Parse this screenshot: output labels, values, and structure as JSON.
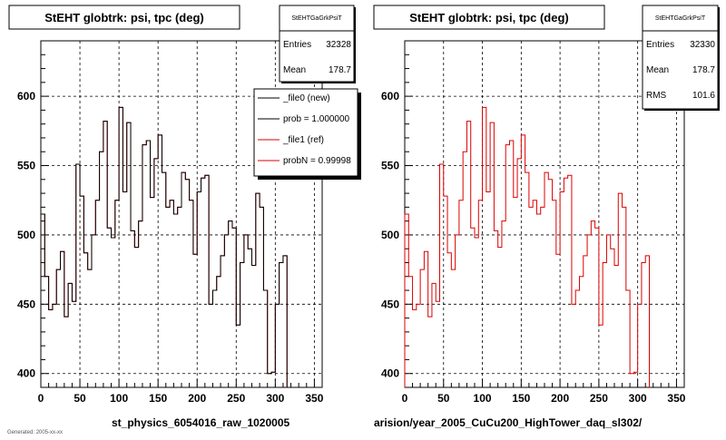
{
  "chart_data": [
    {
      "type": "line",
      "title": "StEHT globtrk: psi, tpc (deg)",
      "footer_label": "st_physics_6054016_raw_1020005",
      "stats": {
        "name": "StEHTGaGrkPsiT",
        "entries_label": "Entries",
        "entries": "32328",
        "mean_label": "Mean",
        "mean": "178.7"
      },
      "legend": [
        {
          "label": "_file0 (new)",
          "color": "#000000"
        },
        {
          "label": "prob = 1.000000",
          "color": "#000000"
        },
        {
          "label": "_file1 (ref)",
          "color": "#dd0000"
        },
        {
          "label": "probN = 0.99998",
          "color": "#dd0000"
        }
      ],
      "xlim": [
        0,
        360
      ],
      "ylim": [
        390,
        640
      ],
      "xticks": [
        "0",
        "50",
        "100",
        "150",
        "200",
        "250",
        "300",
        "350"
      ],
      "yticks": [
        "400",
        "450",
        "500",
        "550",
        "600"
      ],
      "grid": true,
      "bin_width": 5,
      "series": [
        {
          "color": "#dd0000",
          "values": [
            515,
            470,
            446,
            450,
            475,
            488,
            441,
            465,
            452,
            551,
            528,
            487,
            475,
            500,
            525,
            560,
            582,
            505,
            498,
            525,
            592,
            531,
            581,
            503,
            491,
            510,
            565,
            568,
            527,
            555,
            572,
            545,
            520,
            525,
            515,
            520,
            545,
            540,
            525,
            486,
            531,
            541,
            543,
            450,
            460,
            470,
            485,
            500,
            510,
            505,
            435,
            480,
            500,
            490,
            478,
            530,
            520,
            460,
            400,
            401,
            450,
            480,
            485
          ]
        },
        {
          "color": "#000000",
          "values": [
            515,
            470,
            446,
            450,
            475,
            488,
            441,
            465,
            452,
            551,
            528,
            487,
            475,
            500,
            525,
            560,
            582,
            505,
            498,
            525,
            592,
            531,
            581,
            503,
            491,
            510,
            565,
            568,
            527,
            555,
            572,
            545,
            520,
            525,
            515,
            520,
            545,
            540,
            525,
            486,
            531,
            541,
            543,
            450,
            460,
            470,
            485,
            500,
            510,
            505,
            435,
            480,
            500,
            490,
            478,
            530,
            520,
            460,
            400,
            401,
            450,
            480,
            485
          ]
        }
      ]
    },
    {
      "type": "line",
      "title": "StEHT globtrk: psi, tpc (deg)",
      "footer_label": "arision/year_2005_CuCu200_HighTower_daq_sl302/",
      "stats": {
        "name": "StEHTGaGrkPsiT",
        "entries_label": "Entries",
        "entries": "32330",
        "mean_label": "Mean",
        "mean": "178.7",
        "rms_label": "RMS",
        "rms": "101.6"
      },
      "xlim": [
        0,
        360
      ],
      "ylim": [
        390,
        640
      ],
      "xticks": [
        "0",
        "50",
        "100",
        "150",
        "200",
        "250",
        "300",
        "350"
      ],
      "yticks": [
        "400",
        "450",
        "500",
        "550",
        "600"
      ],
      "grid": true,
      "bin_width": 5,
      "series": [
        {
          "color": "#dd0000",
          "values": [
            515,
            470,
            446,
            450,
            475,
            488,
            441,
            465,
            452,
            551,
            528,
            487,
            475,
            500,
            525,
            560,
            582,
            505,
            498,
            525,
            592,
            531,
            581,
            503,
            491,
            510,
            565,
            568,
            527,
            555,
            572,
            545,
            520,
            525,
            515,
            520,
            545,
            540,
            525,
            486,
            531,
            541,
            543,
            450,
            460,
            470,
            485,
            500,
            510,
            505,
            435,
            480,
            500,
            490,
            478,
            530,
            520,
            460,
            400,
            401,
            450,
            480,
            485
          ]
        }
      ]
    }
  ],
  "bottom_caption": "Generated: 2005-xx-xx"
}
